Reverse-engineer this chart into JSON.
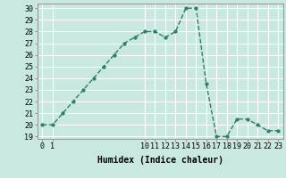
{
  "x": [
    0,
    1,
    2,
    3,
    4,
    5,
    6,
    7,
    8,
    9,
    10,
    11,
    12,
    13,
    14,
    15,
    16,
    17,
    18,
    19,
    20,
    21,
    22,
    23
  ],
  "y": [
    20,
    20,
    21,
    22,
    23,
    24,
    25,
    26,
    27,
    27.5,
    28,
    28,
    27.5,
    28,
    30,
    30,
    23.5,
    19,
    19,
    20.5,
    20.5,
    20,
    19.5,
    19.5
  ],
  "line_color": "#2e7d6e",
  "marker": "o",
  "marker_size": 2.5,
  "bg_color": "#c8e8e0",
  "grid_color": "#ffffff",
  "xlabel": "Humidex (Indice chaleur)",
  "ylim": [
    18.8,
    30.4
  ],
  "xlim": [
    -0.5,
    23.5
  ],
  "yticks": [
    19,
    20,
    21,
    22,
    23,
    24,
    25,
    26,
    27,
    28,
    29,
    30
  ],
  "xticks": [
    0,
    1,
    10,
    11,
    12,
    13,
    14,
    15,
    16,
    17,
    18,
    19,
    20,
    21,
    22,
    23
  ],
  "xlabel_fontsize": 7,
  "tick_fontsize": 6,
  "line_width": 1.0
}
